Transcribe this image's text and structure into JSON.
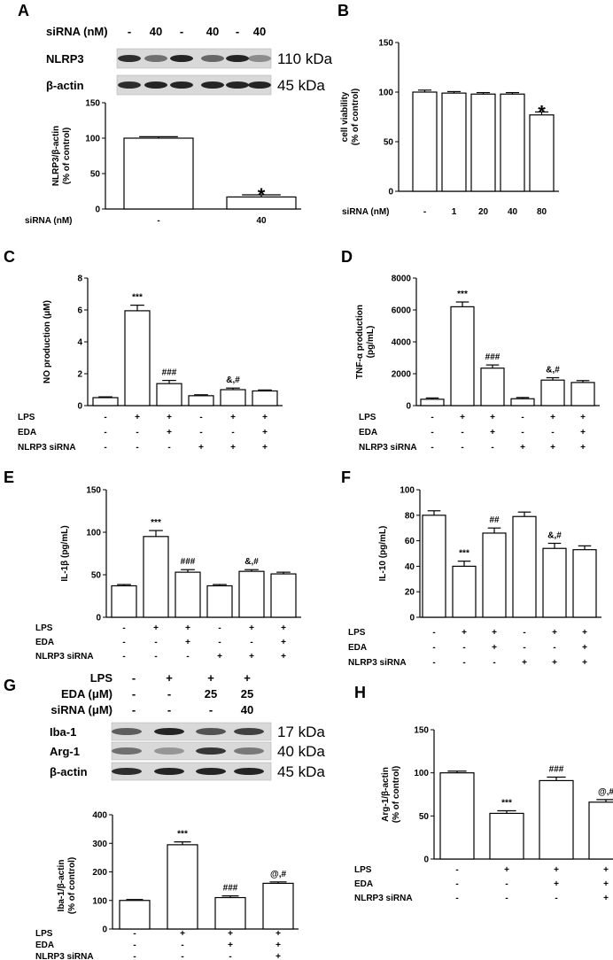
{
  "chart_data": [
    {
      "id": "A",
      "panel_label": "A",
      "type": "bar",
      "ylabel": "NLRP3/β-actin\n(% of control)",
      "ylim": [
        0,
        150
      ],
      "yticks": [
        0,
        50,
        100,
        150
      ],
      "rows": [
        {
          "label": "siRNA (nM)",
          "values": [
            "-",
            "40"
          ]
        }
      ],
      "series": [
        {
          "values": [
            100,
            17
          ],
          "errors": [
            2,
            3
          ]
        }
      ],
      "annotations": [
        "",
        "*"
      ],
      "blot": {
        "header_label": "siRNA (nM)",
        "header_values": [
          "-",
          "40",
          "-",
          "40",
          "-",
          "40"
        ],
        "proteins": [
          {
            "name": "NLRP3",
            "kda": "110 kDa"
          },
          {
            "name": "β-actin",
            "kda": "45 kDa"
          }
        ]
      }
    },
    {
      "id": "B",
      "panel_label": "B",
      "type": "bar",
      "ylabel": "cell viability\n(% of control)",
      "ylim": [
        0,
        150
      ],
      "yticks": [
        0,
        50,
        100,
        150
      ],
      "rows": [
        {
          "label": "siRNA (nM)",
          "values": [
            "-",
            "1",
            "20",
            "40",
            "80"
          ]
        }
      ],
      "series": [
        {
          "values": [
            100,
            99,
            98,
            98,
            77
          ],
          "errors": [
            2,
            1.5,
            1.5,
            1.5,
            3
          ]
        }
      ],
      "annotations": [
        "",
        "",
        "",
        "",
        "*"
      ]
    },
    {
      "id": "C",
      "panel_label": "C",
      "type": "bar",
      "ylabel": "NO production (μM)",
      "ylim": [
        0,
        8
      ],
      "yticks": [
        0,
        2,
        4,
        6,
        8
      ],
      "rows": [
        {
          "label": "LPS",
          "values": [
            "-",
            "+",
            "+",
            "-",
            "+",
            "+"
          ]
        },
        {
          "label": "EDA",
          "values": [
            "-",
            "-",
            "+",
            "-",
            "-",
            "+"
          ]
        },
        {
          "label": "NLRP3 siRNA",
          "values": [
            "-",
            "-",
            "-",
            "+",
            "+",
            "+"
          ]
        }
      ],
      "series": [
        {
          "values": [
            0.5,
            5.95,
            1.38,
            0.62,
            1.0,
            0.92
          ],
          "errors": [
            0.05,
            0.35,
            0.2,
            0.06,
            0.1,
            0.06
          ]
        }
      ],
      "annotations": [
        "",
        "***",
        "###",
        "",
        "&,#",
        ""
      ]
    },
    {
      "id": "D",
      "panel_label": "D",
      "type": "bar",
      "ylabel": "TNF-α production\n(pg/mL)",
      "ylim": [
        0,
        8000
      ],
      "yticks": [
        0,
        2000,
        4000,
        6000,
        8000
      ],
      "rows": [
        {
          "label": "LPS",
          "values": [
            "-",
            "+",
            "+",
            "-",
            "+",
            "+"
          ]
        },
        {
          "label": "EDA",
          "values": [
            "-",
            "-",
            "+",
            "-",
            "-",
            "+"
          ]
        },
        {
          "label": "NLRP3 siRNA",
          "values": [
            "-",
            "-",
            "-",
            "+",
            "+",
            "+"
          ]
        }
      ],
      "series": [
        {
          "values": [
            400,
            6200,
            2350,
            430,
            1600,
            1450
          ],
          "errors": [
            80,
            300,
            200,
            80,
            150,
            120
          ]
        }
      ],
      "annotations": [
        "",
        "***",
        "###",
        "",
        "&,#",
        ""
      ]
    },
    {
      "id": "E",
      "panel_label": "E",
      "type": "bar",
      "ylabel": "IL-1β (pg/mL)",
      "ylim": [
        0,
        150
      ],
      "yticks": [
        0,
        50,
        100,
        150
      ],
      "rows": [
        {
          "label": "LPS",
          "values": [
            "-",
            "+",
            "+",
            "-",
            "+",
            "+"
          ]
        },
        {
          "label": "EDA",
          "values": [
            "-",
            "-",
            "+",
            "-",
            "-",
            "+"
          ]
        },
        {
          "label": "NLRP3 siRNA",
          "values": [
            "-",
            "-",
            "-",
            "+",
            "+",
            "+"
          ]
        }
      ],
      "series": [
        {
          "values": [
            37,
            95,
            53,
            37,
            54,
            51
          ],
          "errors": [
            1.5,
            7,
            3,
            1.5,
            2,
            2
          ]
        }
      ],
      "annotations": [
        "",
        "***",
        "###",
        "",
        "&,#",
        ""
      ]
    },
    {
      "id": "F",
      "panel_label": "F",
      "type": "bar",
      "ylabel": "IL-10 (pg/mL)",
      "ylim": [
        0,
        100
      ],
      "yticks": [
        0,
        20,
        40,
        60,
        80,
        100
      ],
      "rows": [
        {
          "label": "LPS",
          "values": [
            "-",
            "+",
            "+",
            "-",
            "+",
            "+"
          ]
        },
        {
          "label": "EDA",
          "values": [
            "-",
            "-",
            "+",
            "-",
            "-",
            "+"
          ]
        },
        {
          "label": "NLRP3 siRNA",
          "values": [
            "-",
            "-",
            "-",
            "+",
            "+",
            "+"
          ]
        }
      ],
      "series": [
        {
          "values": [
            80,
            40,
            66,
            79,
            54,
            53
          ],
          "errors": [
            3.5,
            4,
            4,
            3.5,
            4,
            3
          ]
        }
      ],
      "annotations": [
        "",
        "***",
        "##",
        "",
        "&,#",
        ""
      ]
    },
    {
      "id": "G",
      "panel_label": "G",
      "type": "bar",
      "ylabel": "Iba-1/β-actin\n(% of control)",
      "ylim": [
        0,
        400
      ],
      "yticks": [
        0,
        100,
        200,
        300,
        400
      ],
      "rows": [
        {
          "label": "LPS",
          "values": [
            "-",
            "+",
            "+",
            "+"
          ]
        },
        {
          "label": "EDA",
          "values": [
            "-",
            "-",
            "+",
            "+"
          ]
        },
        {
          "label": "NLRP3 siRNA",
          "values": [
            "-",
            "-",
            "-",
            "+"
          ]
        }
      ],
      "series": [
        {
          "values": [
            100,
            295,
            110,
            160
          ],
          "errors": [
            3,
            10,
            6,
            5
          ]
        }
      ],
      "annotations": [
        "",
        "***",
        "###",
        "@,#"
      ],
      "blot": {
        "header_rows": [
          {
            "label": "LPS",
            "values": [
              "-",
              "+",
              "+",
              "+"
            ]
          },
          {
            "label": "EDA (μM)",
            "values": [
              "-",
              "-",
              "25",
              "25"
            ]
          },
          {
            "label": "siRNA (μM)",
            "values": [
              "-",
              "-",
              "-",
              "40"
            ]
          }
        ],
        "proteins": [
          {
            "name": "Iba-1",
            "kda": "17 kDa"
          },
          {
            "name": "Arg-1",
            "kda": "40 kDa"
          },
          {
            "name": "β-actin",
            "kda": "45 kDa"
          }
        ]
      }
    },
    {
      "id": "H",
      "panel_label": "H",
      "type": "bar",
      "ylabel": "Arg-1/β-actin\n(% of control)",
      "ylim": [
        0,
        150
      ],
      "yticks": [
        0,
        50,
        100,
        150
      ],
      "rows": [
        {
          "label": "LPS",
          "values": [
            "-",
            "+",
            "+",
            "+"
          ]
        },
        {
          "label": "EDA",
          "values": [
            "-",
            "-",
            "+",
            "+"
          ]
        },
        {
          "label": "NLRP3 siRNA",
          "values": [
            "-",
            "-",
            "-",
            "+"
          ]
        }
      ],
      "series": [
        {
          "values": [
            100,
            53,
            91,
            66
          ],
          "errors": [
            2,
            3,
            4,
            3
          ]
        }
      ],
      "annotations": [
        "",
        "***",
        "###",
        "@,#"
      ]
    }
  ]
}
